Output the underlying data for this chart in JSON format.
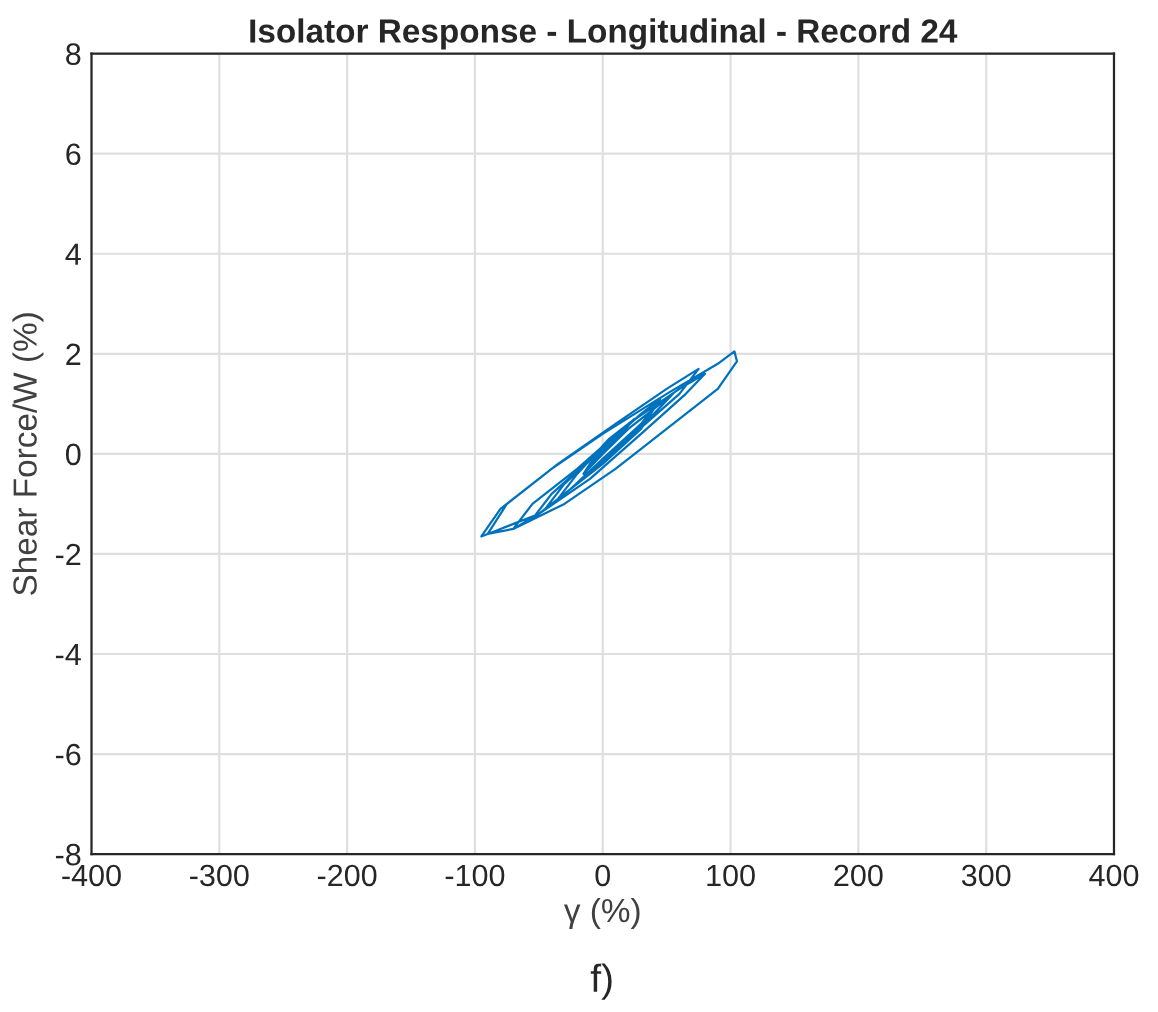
{
  "chart_data": {
    "type": "line",
    "title": "Isolator Response - Longitudinal - Record 24",
    "xlabel": "γ (%)",
    "ylabel": "Shear Force/W (%)",
    "annotations": [
      "f)"
    ],
    "series": [
      {
        "color": "#0072bd",
        "x": [
          0,
          20,
          40,
          30,
          0,
          -30,
          -45,
          -30,
          0,
          30,
          55,
          40,
          10,
          -20,
          -50,
          -70,
          -55,
          -20,
          20,
          60,
          80,
          65,
          30,
          -10,
          -50,
          -85,
          -95,
          -80,
          -40,
          0,
          50,
          90,
          103,
          105,
          90,
          50,
          10,
          -30,
          -70,
          -90,
          -75,
          -35,
          10,
          50,
          75,
          60,
          20,
          -20,
          -55,
          -40,
          -5,
          30,
          45,
          30,
          0,
          -25,
          -35,
          -20,
          5,
          25,
          10,
          -10,
          -15,
          0,
          12,
          0,
          -5
        ],
        "values": [
          0,
          0.5,
          0.9,
          0.5,
          -0.2,
          -0.8,
          -1.1,
          -0.6,
          0.1,
          0.7,
          1.2,
          0.8,
          0.1,
          -0.6,
          -1.2,
          -1.5,
          -1.0,
          -0.3,
          0.6,
          1.3,
          1.6,
          1.2,
          0.4,
          -0.5,
          -1.2,
          -1.55,
          -1.65,
          -1.1,
          -0.3,
          0.4,
          1.2,
          1.8,
          2.05,
          1.85,
          1.3,
          0.5,
          -0.3,
          -1.0,
          -1.5,
          -1.6,
          -1.0,
          -0.2,
          0.6,
          1.3,
          1.7,
          1.2,
          0.3,
          -0.6,
          -1.3,
          -0.8,
          0,
          0.8,
          1.1,
          0.6,
          -0.1,
          -0.7,
          -0.9,
          -0.4,
          0.3,
          0.7,
          0.3,
          -0.2,
          -0.4,
          0,
          0.3,
          0.05,
          -0.1
        ]
      }
    ],
    "xlim": [
      -400,
      400
    ],
    "xticks": [
      -400,
      -300,
      -200,
      -100,
      0,
      100,
      200,
      300,
      400
    ],
    "ylim": [
      -8,
      8
    ],
    "yticks": [
      -8,
      -6,
      -4,
      -2,
      0,
      2,
      4,
      6,
      8
    ],
    "grid": true,
    "marker": "none",
    "line_style": "solid"
  }
}
